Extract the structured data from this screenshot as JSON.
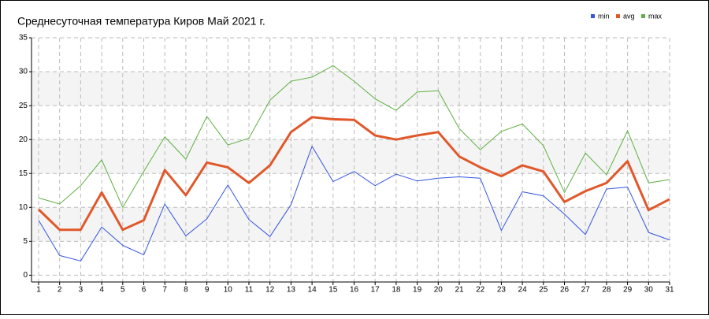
{
  "chart_data": {
    "type": "line",
    "title": "Среднесуточная температура Киров  Май 2021 г.",
    "x": [
      1,
      2,
      3,
      4,
      5,
      6,
      7,
      8,
      9,
      10,
      11,
      12,
      13,
      14,
      15,
      16,
      17,
      18,
      19,
      20,
      21,
      22,
      23,
      24,
      25,
      26,
      27,
      28,
      29,
      30,
      31
    ],
    "series": [
      {
        "name": "min",
        "color": "#3355dd",
        "width": 1,
        "values": [
          8.1,
          2.9,
          2.1,
          7.1,
          4.4,
          3.0,
          10.5,
          5.8,
          8.3,
          13.3,
          8.2,
          5.7,
          10.4,
          19.0,
          13.8,
          15.3,
          13.2,
          14.9,
          13.9,
          14.3,
          14.5,
          14.3,
          6.6,
          12.3,
          11.7,
          9.0,
          6.0,
          12.7,
          13.0,
          6.3,
          5.2
        ]
      },
      {
        "name": "avg",
        "color": "#e0582a",
        "width": 3,
        "values": [
          9.7,
          6.7,
          6.7,
          12.2,
          6.7,
          8.1,
          15.5,
          11.8,
          16.6,
          15.9,
          13.6,
          16.2,
          21.1,
          23.3,
          23.0,
          22.9,
          20.6,
          20.0,
          20.6,
          21.1,
          17.5,
          15.9,
          14.6,
          16.2,
          15.3,
          10.8,
          12.4,
          13.6,
          16.8,
          9.6,
          11.2
        ]
      },
      {
        "name": "max",
        "color": "#5cb040",
        "width": 1,
        "values": [
          11.4,
          10.5,
          13.2,
          17.0,
          10.0,
          15.3,
          20.4,
          17.1,
          23.4,
          19.2,
          20.2,
          25.8,
          28.6,
          29.2,
          30.9,
          28.6,
          26.0,
          24.3,
          27.0,
          27.2,
          21.6,
          18.5,
          21.2,
          22.3,
          19.1,
          12.2,
          18.0,
          14.8,
          21.3,
          13.6,
          14.1
        ]
      }
    ],
    "xlim": [
      1,
      31
    ],
    "xticks": [
      1,
      2,
      3,
      4,
      5,
      6,
      7,
      8,
      9,
      10,
      11,
      12,
      13,
      14,
      15,
      16,
      17,
      18,
      19,
      20,
      21,
      22,
      23,
      24,
      25,
      26,
      27,
      28,
      29,
      30,
      31
    ],
    "ylim": [
      -1,
      35
    ],
    "yticks": [
      0,
      5,
      10,
      15,
      20,
      25,
      30,
      35
    ],
    "grid": true
  }
}
